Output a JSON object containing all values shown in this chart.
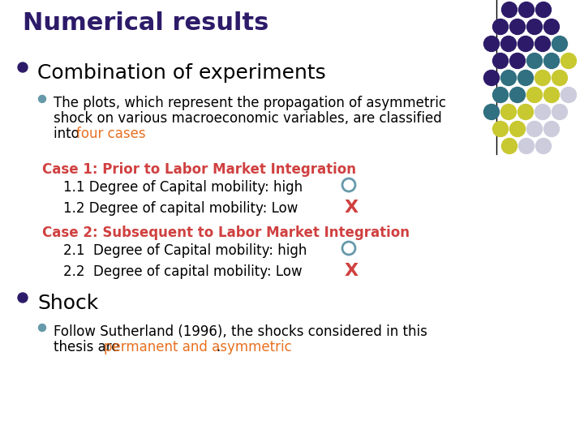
{
  "title": "Numerical results",
  "title_color": "#2d1b69",
  "title_fontsize": 22,
  "bg_color": "#ffffff",
  "bullet1_text": "Combination of experiments",
  "bullet1_color": "#000000",
  "bullet1_fontsize": 18,
  "sub_text1_line1": "The plots, which represent the propagation of asymmetric",
  "sub_text1_line2": "shock on various macroeconomic variables, are classified",
  "sub_text1_line3_normal": "into ",
  "sub_text1_line3_colored": "four cases",
  "sub_text1_colored_color": "#e87020",
  "case1_text": "Case 1: Prior to Labor Market Integration",
  "case1_color": "#d04040",
  "item11_text": "1.1 Degree of Capital mobility: high",
  "item12_text": "1.2 Degree of capital mobility: Low",
  "case2_text": "Case 2: Subsequent to Labor Market Integration",
  "case2_color": "#d04040",
  "item21_text": "2.1  Degree of Capital mobility: high",
  "item22_text": "2.2  Degree of capital mobility: Low",
  "bullet2_text": "Shock",
  "bullet2_color": "#000000",
  "bullet2_fontsize": 18,
  "sub_text2_line1_normal": "Follow Sutherland (1996), the shocks considered in this",
  "sub_text2_line2_normal": "thesis are ",
  "sub_text2_line2_colored": "permanent and asymmetric",
  "sub_text2_colored_color": "#e87020",
  "item_fontsize": 12,
  "case_fontsize": 12,
  "bullet_marker_color": "#2d1b69",
  "sub_bullet_marker_color": "#6699aa",
  "dot_grid": [
    [
      "#2d1b69",
      "#2d1b69",
      "#2d1b69"
    ],
    [
      "#2d1b69",
      "#2d1b69",
      "#2d1b69",
      "#2d1b69"
    ],
    [
      "#2d1b69",
      "#2d1b69",
      "#2d1b69",
      "#2d1b69",
      "#307080"
    ],
    [
      "#2d1b69",
      "#2d1b69",
      "#307080",
      "#307080",
      "#c8c830"
    ],
    [
      "#2d1b69",
      "#307080",
      "#307080",
      "#c8c830",
      "#c8c830"
    ],
    [
      "#307080",
      "#307080",
      "#c8c830",
      "#c8c830",
      "#ccccdd"
    ],
    [
      "#307080",
      "#c8c830",
      "#c8c830",
      "#ccccdd",
      "#ccccdd"
    ],
    [
      "#c8c830",
      "#c8c830",
      "#ccccdd",
      "#ccccdd"
    ],
    [
      "#c8c830",
      "#ccccdd",
      "#ccccdd"
    ]
  ]
}
